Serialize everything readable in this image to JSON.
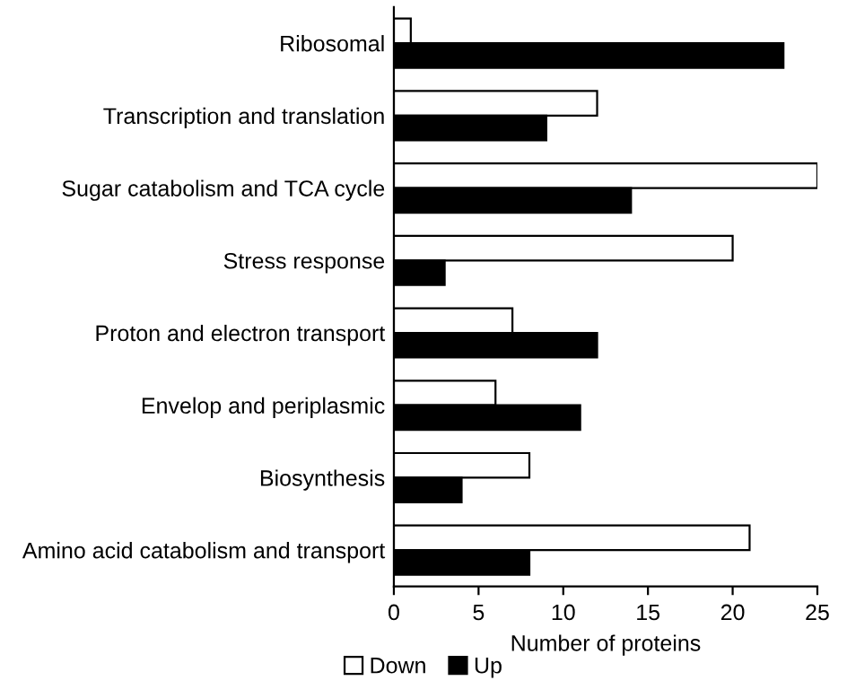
{
  "chart_data": {
    "type": "bar",
    "orientation": "horizontal",
    "xlabel": "Number of proteins",
    "categories": [
      "Ribosomal",
      "Transcription and translation",
      "Sugar catabolism and TCA cycle",
      "Stress response",
      "Proton and electron transport",
      "Envelop and periplasmic",
      "Biosynthesis",
      "Amino acid catabolism and transport"
    ],
    "series": [
      {
        "name": "Down",
        "color": "#ffffff",
        "values": [
          1,
          12,
          25,
          20,
          7,
          6,
          8,
          21
        ]
      },
      {
        "name": "Up",
        "color": "#000000",
        "values": [
          23,
          9,
          14,
          3,
          12,
          11,
          4,
          8
        ]
      }
    ],
    "xlim": [
      0,
      25
    ],
    "xticks": [
      0,
      5,
      10,
      15,
      20,
      25
    ],
    "grid": false,
    "legend": "bottom"
  }
}
